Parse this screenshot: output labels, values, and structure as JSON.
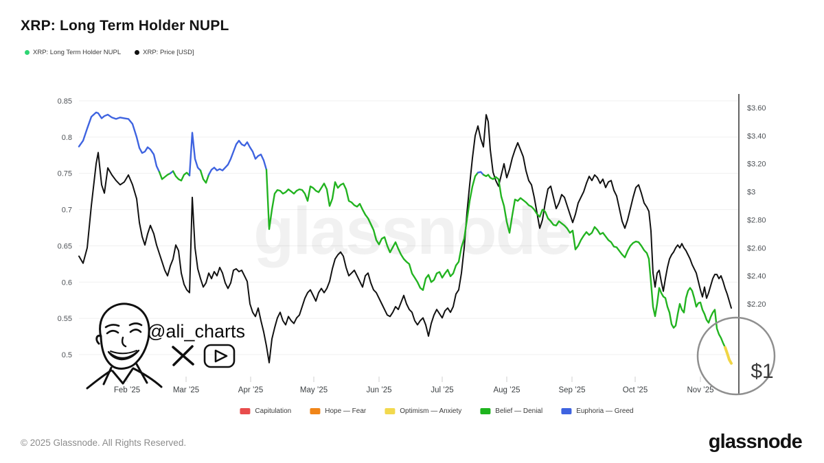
{
  "page": {
    "title": "XRP: Long Term Holder NUPL"
  },
  "top_legend": [
    {
      "label": "XRP: Long Term Holder NUPL",
      "color": "#2ed573"
    },
    {
      "label": "XRP: Price [USD]",
      "color": "#111111"
    }
  ],
  "watermark": "glassnode",
  "annotation": {
    "handle": "@ali_charts",
    "price_label": "$1",
    "icons": [
      "x-logo-icon",
      "youtube-icon",
      "portrait-sketch"
    ]
  },
  "zone_legend": [
    {
      "label": "Capitulation",
      "color": "#e84c4c"
    },
    {
      "label": "Hope — Fear",
      "color": "#f08518"
    },
    {
      "label": "Optimism — Anxiety",
      "color": "#f2d94e"
    },
    {
      "label": "Belief — Denial",
      "color": "#1eb41e"
    },
    {
      "label": "Euphoria — Greed",
      "color": "#3e63e0"
    }
  ],
  "footer": {
    "copyright": "© 2025 Glassnode. All Rights Reserved.",
    "brand": "glassnode"
  },
  "chart_data": {
    "type": "line",
    "title": "XRP: Long Term Holder NUPL",
    "x_axis": {
      "start": "2025-01-09",
      "end": "2025-11-16",
      "note": "px = horizontal offset from plot left edge, ~3.06 px per day",
      "months": [
        {
          "label": "Feb ’25",
          "px": 70
        },
        {
          "label": "Mar ’25",
          "px": 156
        },
        {
          "label": "Apr ’25",
          "px": 250
        },
        {
          "label": "May ’25",
          "px": 342
        },
        {
          "label": "Jun ’25",
          "px": 437
        },
        {
          "label": "Jul ’25",
          "px": 529
        },
        {
          "label": "Aug ’25",
          "px": 623
        },
        {
          "label": "Sep ’25",
          "px": 718
        },
        {
          "label": "Oct ’25",
          "px": 810
        },
        {
          "label": "Nov ’25",
          "px": 905
        }
      ]
    },
    "left_axis": {
      "name": "NUPL",
      "ticks": [
        "0.85",
        "0.8",
        "0.75",
        "0.7",
        "0.65",
        "0.6",
        "0.55",
        "0.5"
      ],
      "tick_values": [
        0.85,
        0.8,
        0.75,
        0.7,
        0.65,
        0.6,
        0.55,
        0.5
      ]
    },
    "right_axis": {
      "name": "XRP Price USD",
      "ticks": [
        {
          "label": "$3.60",
          "value": 3.6
        },
        {
          "label": "$3.40",
          "value": 3.4
        },
        {
          "label": "$3.20",
          "value": 3.2
        },
        {
          "label": "$3",
          "value": 3.0
        },
        {
          "label": "$2.80",
          "value": 2.8
        },
        {
          "label": "$2.60",
          "value": 2.6
        },
        {
          "label": "$2.40",
          "value": 2.4
        },
        {
          "label": "$2.20",
          "value": 2.2
        }
      ]
    },
    "series": [
      {
        "name": "XRP: Long Term Holder NUPL",
        "axis": "left",
        "style": "zone-colored",
        "zones": {
          "euphoria_greed_min": 0.75,
          "belief_denial_range": [
            0.5,
            0.75
          ],
          "optimism_anxiety_max": 0.5
        },
        "zone_colors": {
          "euphoria": "#3e63e0",
          "belief": "#22b320",
          "optimism": "#f0d545"
        }
      },
      {
        "name": "XRP: Price [USD]",
        "axis": "right",
        "color": "#111111"
      }
    ],
    "points_format": [
      "px_from_left",
      "nupl",
      "price_usd"
    ],
    "points": [
      [
        0,
        0.787,
        2.54
      ],
      [
        6,
        0.795,
        2.49
      ],
      [
        12,
        0.812,
        2.6
      ],
      [
        18,
        0.828,
        2.9
      ],
      [
        25,
        0.834,
        3.2
      ],
      [
        28,
        0.833,
        3.28
      ],
      [
        33,
        0.826,
        3.05
      ],
      [
        37,
        0.829,
        2.99
      ],
      [
        42,
        0.831,
        3.17
      ],
      [
        48,
        0.827,
        3.12
      ],
      [
        54,
        0.825,
        3.08
      ],
      [
        60,
        0.827,
        3.05
      ],
      [
        66,
        0.826,
        3.07
      ],
      [
        72,
        0.825,
        3.12
      ],
      [
        78,
        0.818,
        3.05
      ],
      [
        84,
        0.8,
        2.95
      ],
      [
        88,
        0.785,
        2.78
      ],
      [
        92,
        0.778,
        2.68
      ],
      [
        96,
        0.78,
        2.62
      ],
      [
        100,
        0.786,
        2.7
      ],
      [
        104,
        0.783,
        2.76
      ],
      [
        109,
        0.776,
        2.7
      ],
      [
        113,
        0.76,
        2.62
      ],
      [
        117,
        0.752,
        2.56
      ],
      [
        121,
        0.742,
        2.5
      ],
      [
        125,
        0.745,
        2.44
      ],
      [
        129,
        0.748,
        2.4
      ],
      [
        133,
        0.75,
        2.47
      ],
      [
        137,
        0.753,
        2.52
      ],
      [
        141,
        0.746,
        2.62
      ],
      [
        145,
        0.742,
        2.58
      ],
      [
        149,
        0.74,
        2.42
      ],
      [
        153,
        0.748,
        2.34
      ],
      [
        157,
        0.751,
        2.3
      ],
      [
        161,
        0.747,
        2.28
      ],
      [
        165,
        0.806,
        2.96
      ],
      [
        169,
        0.77,
        2.6
      ],
      [
        173,
        0.758,
        2.45
      ],
      [
        177,
        0.754,
        2.38
      ],
      [
        181,
        0.742,
        2.32
      ],
      [
        185,
        0.737,
        2.35
      ],
      [
        189,
        0.748,
        2.42
      ],
      [
        193,
        0.755,
        2.38
      ],
      [
        197,
        0.758,
        2.43
      ],
      [
        201,
        0.754,
        2.4
      ],
      [
        205,
        0.756,
        2.46
      ],
      [
        209,
        0.754,
        2.42
      ],
      [
        213,
        0.758,
        2.35
      ],
      [
        217,
        0.762,
        2.31
      ],
      [
        221,
        0.77,
        2.35
      ],
      [
        225,
        0.78,
        2.44
      ],
      [
        229,
        0.79,
        2.45
      ],
      [
        233,
        0.795,
        2.43
      ],
      [
        237,
        0.79,
        2.44
      ],
      [
        241,
        0.788,
        2.4
      ],
      [
        245,
        0.793,
        2.36
      ],
      [
        249,
        0.786,
        2.2
      ],
      [
        253,
        0.78,
        2.14
      ],
      [
        257,
        0.77,
        2.11
      ],
      [
        261,
        0.774,
        2.17
      ],
      [
        265,
        0.776,
        2.08
      ],
      [
        269,
        0.768,
        2.0
      ],
      [
        273,
        0.755,
        1.9
      ],
      [
        277,
        0.673,
        1.78
      ],
      [
        281,
        0.7,
        1.95
      ],
      [
        285,
        0.722,
        2.03
      ],
      [
        289,
        0.727,
        2.1
      ],
      [
        293,
        0.726,
        2.14
      ],
      [
        297,
        0.722,
        2.08
      ],
      [
        301,
        0.724,
        2.05
      ],
      [
        305,
        0.728,
        2.11
      ],
      [
        309,
        0.725,
        2.08
      ],
      [
        313,
        0.722,
        2.06
      ],
      [
        317,
        0.726,
        2.1
      ],
      [
        321,
        0.728,
        2.12
      ],
      [
        325,
        0.727,
        2.18
      ],
      [
        329,
        0.722,
        2.24
      ],
      [
        333,
        0.712,
        2.28
      ],
      [
        337,
        0.732,
        2.3
      ],
      [
        341,
        0.73,
        2.26
      ],
      [
        345,
        0.726,
        2.22
      ],
      [
        349,
        0.724,
        2.28
      ],
      [
        353,
        0.73,
        2.31
      ],
      [
        357,
        0.736,
        2.28
      ],
      [
        361,
        0.728,
        2.31
      ],
      [
        365,
        0.705,
        2.36
      ],
      [
        369,
        0.715,
        2.45
      ],
      [
        373,
        0.738,
        2.52
      ],
      [
        377,
        0.73,
        2.55
      ],
      [
        381,
        0.734,
        2.57
      ],
      [
        385,
        0.736,
        2.54
      ],
      [
        389,
        0.728,
        2.46
      ],
      [
        393,
        0.712,
        2.4
      ],
      [
        397,
        0.71,
        2.42
      ],
      [
        401,
        0.706,
        2.44
      ],
      [
        405,
        0.704,
        2.4
      ],
      [
        409,
        0.708,
        2.36
      ],
      [
        413,
        0.7,
        2.32
      ],
      [
        417,
        0.693,
        2.4
      ],
      [
        421,
        0.688,
        2.42
      ],
      [
        425,
        0.68,
        2.35
      ],
      [
        429,
        0.672,
        2.3
      ],
      [
        433,
        0.658,
        2.28
      ],
      [
        437,
        0.652,
        2.24
      ],
      [
        441,
        0.66,
        2.2
      ],
      [
        445,
        0.662,
        2.16
      ],
      [
        449,
        0.65,
        2.12
      ],
      [
        453,
        0.641,
        2.11
      ],
      [
        457,
        0.648,
        2.14
      ],
      [
        461,
        0.655,
        2.18
      ],
      [
        465,
        0.646,
        2.16
      ],
      [
        469,
        0.638,
        2.21
      ],
      [
        473,
        0.632,
        2.26
      ],
      [
        477,
        0.628,
        2.2
      ],
      [
        481,
        0.625,
        2.16
      ],
      [
        485,
        0.612,
        2.14
      ],
      [
        489,
        0.606,
        2.08
      ],
      [
        493,
        0.6,
        2.05
      ],
      [
        497,
        0.592,
        2.08
      ],
      [
        501,
        0.589,
        2.1
      ],
      [
        505,
        0.605,
        2.05
      ],
      [
        509,
        0.61,
        1.97
      ],
      [
        513,
        0.6,
        2.06
      ],
      [
        517,
        0.603,
        2.12
      ],
      [
        521,
        0.612,
        2.16
      ],
      [
        525,
        0.614,
        2.13
      ],
      [
        529,
        0.606,
        2.1
      ],
      [
        533,
        0.612,
        2.15
      ],
      [
        537,
        0.617,
        2.17
      ],
      [
        541,
        0.608,
        2.14
      ],
      [
        545,
        0.612,
        2.18
      ],
      [
        549,
        0.623,
        2.27
      ],
      [
        553,
        0.628,
        2.3
      ],
      [
        557,
        0.648,
        2.42
      ],
      [
        561,
        0.66,
        2.6
      ],
      [
        565,
        0.686,
        2.85
      ],
      [
        569,
        0.712,
        3.05
      ],
      [
        573,
        0.732,
        3.24
      ],
      [
        577,
        0.746,
        3.4
      ],
      [
        581,
        0.751,
        3.47
      ],
      [
        585,
        0.752,
        3.38
      ],
      [
        589,
        0.748,
        3.32
      ],
      [
        593,
        0.746,
        3.55
      ],
      [
        596,
        0.748,
        3.5
      ],
      [
        599,
        0.744,
        3.3
      ],
      [
        603,
        0.742,
        3.14
      ],
      [
        607,
        0.745,
        3.08
      ],
      [
        611,
        0.742,
        3.04
      ],
      [
        615,
        0.718,
        3.12
      ],
      [
        619,
        0.705,
        3.2
      ],
      [
        623,
        0.683,
        3.1
      ],
      [
        627,
        0.668,
        3.16
      ],
      [
        631,
        0.692,
        3.24
      ],
      [
        635,
        0.714,
        3.3
      ],
      [
        639,
        0.712,
        3.35
      ],
      [
        643,
        0.716,
        3.3
      ],
      [
        647,
        0.713,
        3.25
      ],
      [
        651,
        0.71,
        3.15
      ],
      [
        655,
        0.706,
        3.08
      ],
      [
        659,
        0.704,
        3.05
      ],
      [
        663,
        0.7,
        2.96
      ],
      [
        667,
        0.694,
        2.85
      ],
      [
        671,
        0.69,
        2.74
      ],
      [
        675,
        0.7,
        2.8
      ],
      [
        679,
        0.697,
        2.92
      ],
      [
        683,
        0.688,
        3.02
      ],
      [
        687,
        0.684,
        3.04
      ],
      [
        691,
        0.679,
        2.96
      ],
      [
        695,
        0.678,
        2.88
      ],
      [
        699,
        0.684,
        2.92
      ],
      [
        703,
        0.681,
        2.98
      ],
      [
        707,
        0.678,
        2.96
      ],
      [
        711,
        0.674,
        2.9
      ],
      [
        715,
        0.668,
        2.84
      ],
      [
        719,
        0.671,
        2.78
      ],
      [
        723,
        0.645,
        2.84
      ],
      [
        727,
        0.65,
        2.92
      ],
      [
        731,
        0.658,
        2.96
      ],
      [
        735,
        0.664,
        3.0
      ],
      [
        739,
        0.669,
        3.06
      ],
      [
        743,
        0.665,
        3.11
      ],
      [
        747,
        0.668,
        3.08
      ],
      [
        751,
        0.676,
        3.12
      ],
      [
        755,
        0.672,
        3.1
      ],
      [
        759,
        0.666,
        3.06
      ],
      [
        763,
        0.668,
        3.09
      ],
      [
        767,
        0.663,
        3.03
      ],
      [
        771,
        0.658,
        3.07
      ],
      [
        775,
        0.655,
        3.08
      ],
      [
        779,
        0.649,
        3.01
      ],
      [
        783,
        0.648,
        2.97
      ],
      [
        787,
        0.643,
        2.88
      ],
      [
        791,
        0.638,
        2.79
      ],
      [
        795,
        0.634,
        2.74
      ],
      [
        799,
        0.643,
        2.8
      ],
      [
        803,
        0.65,
        2.88
      ],
      [
        807,
        0.654,
        2.96
      ],
      [
        811,
        0.656,
        3.03
      ],
      [
        815,
        0.655,
        3.05
      ],
      [
        819,
        0.65,
        2.99
      ],
      [
        823,
        0.644,
        2.92
      ],
      [
        827,
        0.64,
        2.89
      ],
      [
        830,
        0.632,
        2.86
      ],
      [
        833,
        0.6,
        2.72
      ],
      [
        836,
        0.566,
        2.42
      ],
      [
        839,
        0.553,
        2.32
      ],
      [
        842,
        0.57,
        2.42
      ],
      [
        845,
        0.592,
        2.44
      ],
      [
        848,
        0.585,
        2.36
      ],
      [
        851,
        0.58,
        2.29
      ],
      [
        854,
        0.578,
        2.38
      ],
      [
        857,
        0.566,
        2.46
      ],
      [
        860,
        0.558,
        2.52
      ],
      [
        863,
        0.542,
        2.55
      ],
      [
        866,
        0.537,
        2.57
      ],
      [
        869,
        0.54,
        2.6
      ],
      [
        872,
        0.556,
        2.62
      ],
      [
        875,
        0.57,
        2.6
      ],
      [
        878,
        0.562,
        2.63
      ],
      [
        881,
        0.558,
        2.6
      ],
      [
        884,
        0.578,
        2.58
      ],
      [
        887,
        0.588,
        2.55
      ],
      [
        890,
        0.592,
        2.52
      ],
      [
        893,
        0.588,
        2.48
      ],
      [
        896,
        0.578,
        2.45
      ],
      [
        899,
        0.566,
        2.42
      ],
      [
        902,
        0.571,
        2.36
      ],
      [
        905,
        0.572,
        2.3
      ],
      [
        908,
        0.562,
        2.25
      ],
      [
        911,
        0.556,
        2.32
      ],
      [
        914,
        0.548,
        2.24
      ],
      [
        917,
        0.544,
        2.28
      ],
      [
        920,
        0.552,
        2.33
      ],
      [
        923,
        0.558,
        2.38
      ],
      [
        926,
        0.562,
        2.41
      ],
      [
        929,
        0.536,
        2.41
      ],
      [
        932,
        0.528,
        2.38
      ],
      [
        935,
        0.523,
        2.4
      ],
      [
        938,
        0.516,
        2.36
      ],
      [
        941,
        0.51,
        2.31
      ],
      [
        944,
        0.502,
        2.27
      ],
      [
        947,
        0.493,
        2.22
      ],
      [
        950,
        0.488,
        2.17
      ]
    ]
  }
}
